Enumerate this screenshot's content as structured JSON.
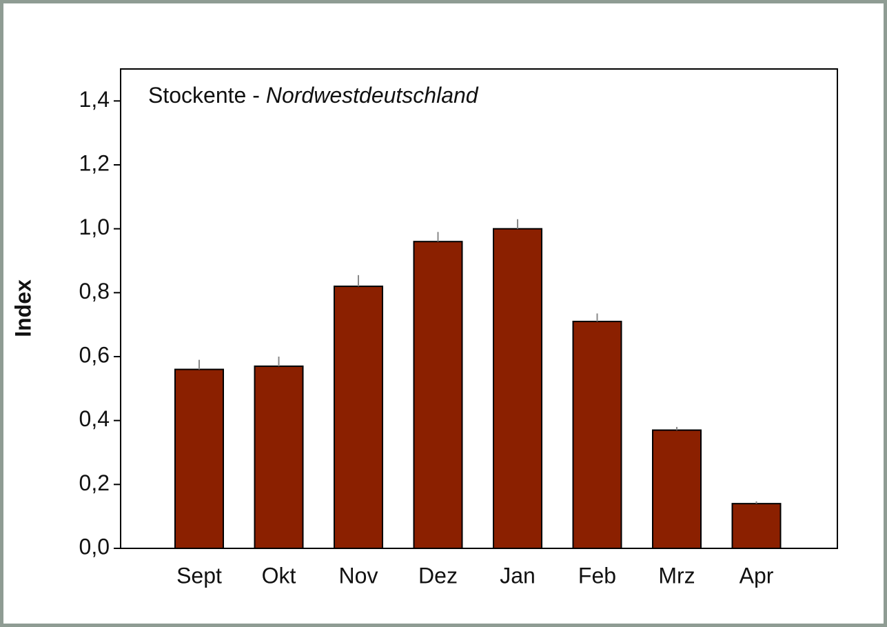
{
  "chart_data": {
    "type": "bar",
    "title": [
      "Stockente -",
      "Nordwestdeutschland"
    ],
    "y_label": "Index",
    "categories": [
      "Sept",
      "Okt",
      "Nov",
      "Dez",
      "Jan",
      "Feb",
      "Mrz",
      "Apr"
    ],
    "values": [
      0.56,
      0.57,
      0.82,
      0.96,
      1.0,
      0.71,
      0.37,
      0.14
    ],
    "errors": [
      0.03,
      0.03,
      0.035,
      0.03,
      0.03,
      0.025,
      0.01,
      0.007
    ],
    "color": "#8b2000",
    "error_color": "#888888",
    "ylim": [
      0,
      1.5
    ],
    "yticks": [
      {
        "value": 0,
        "label": "0,0"
      },
      {
        "value": 0.2,
        "label": "0,2"
      },
      {
        "value": 0.4,
        "label": "0,4"
      },
      {
        "value": 0.6,
        "label": "0,6"
      },
      {
        "value": 0.8,
        "label": "0,8"
      },
      {
        "value": 1.0,
        "label": "1,0"
      },
      {
        "value": 1.2,
        "label": "1,2"
      },
      {
        "value": 1.4,
        "label": "1,4"
      }
    ],
    "grid": false
  }
}
